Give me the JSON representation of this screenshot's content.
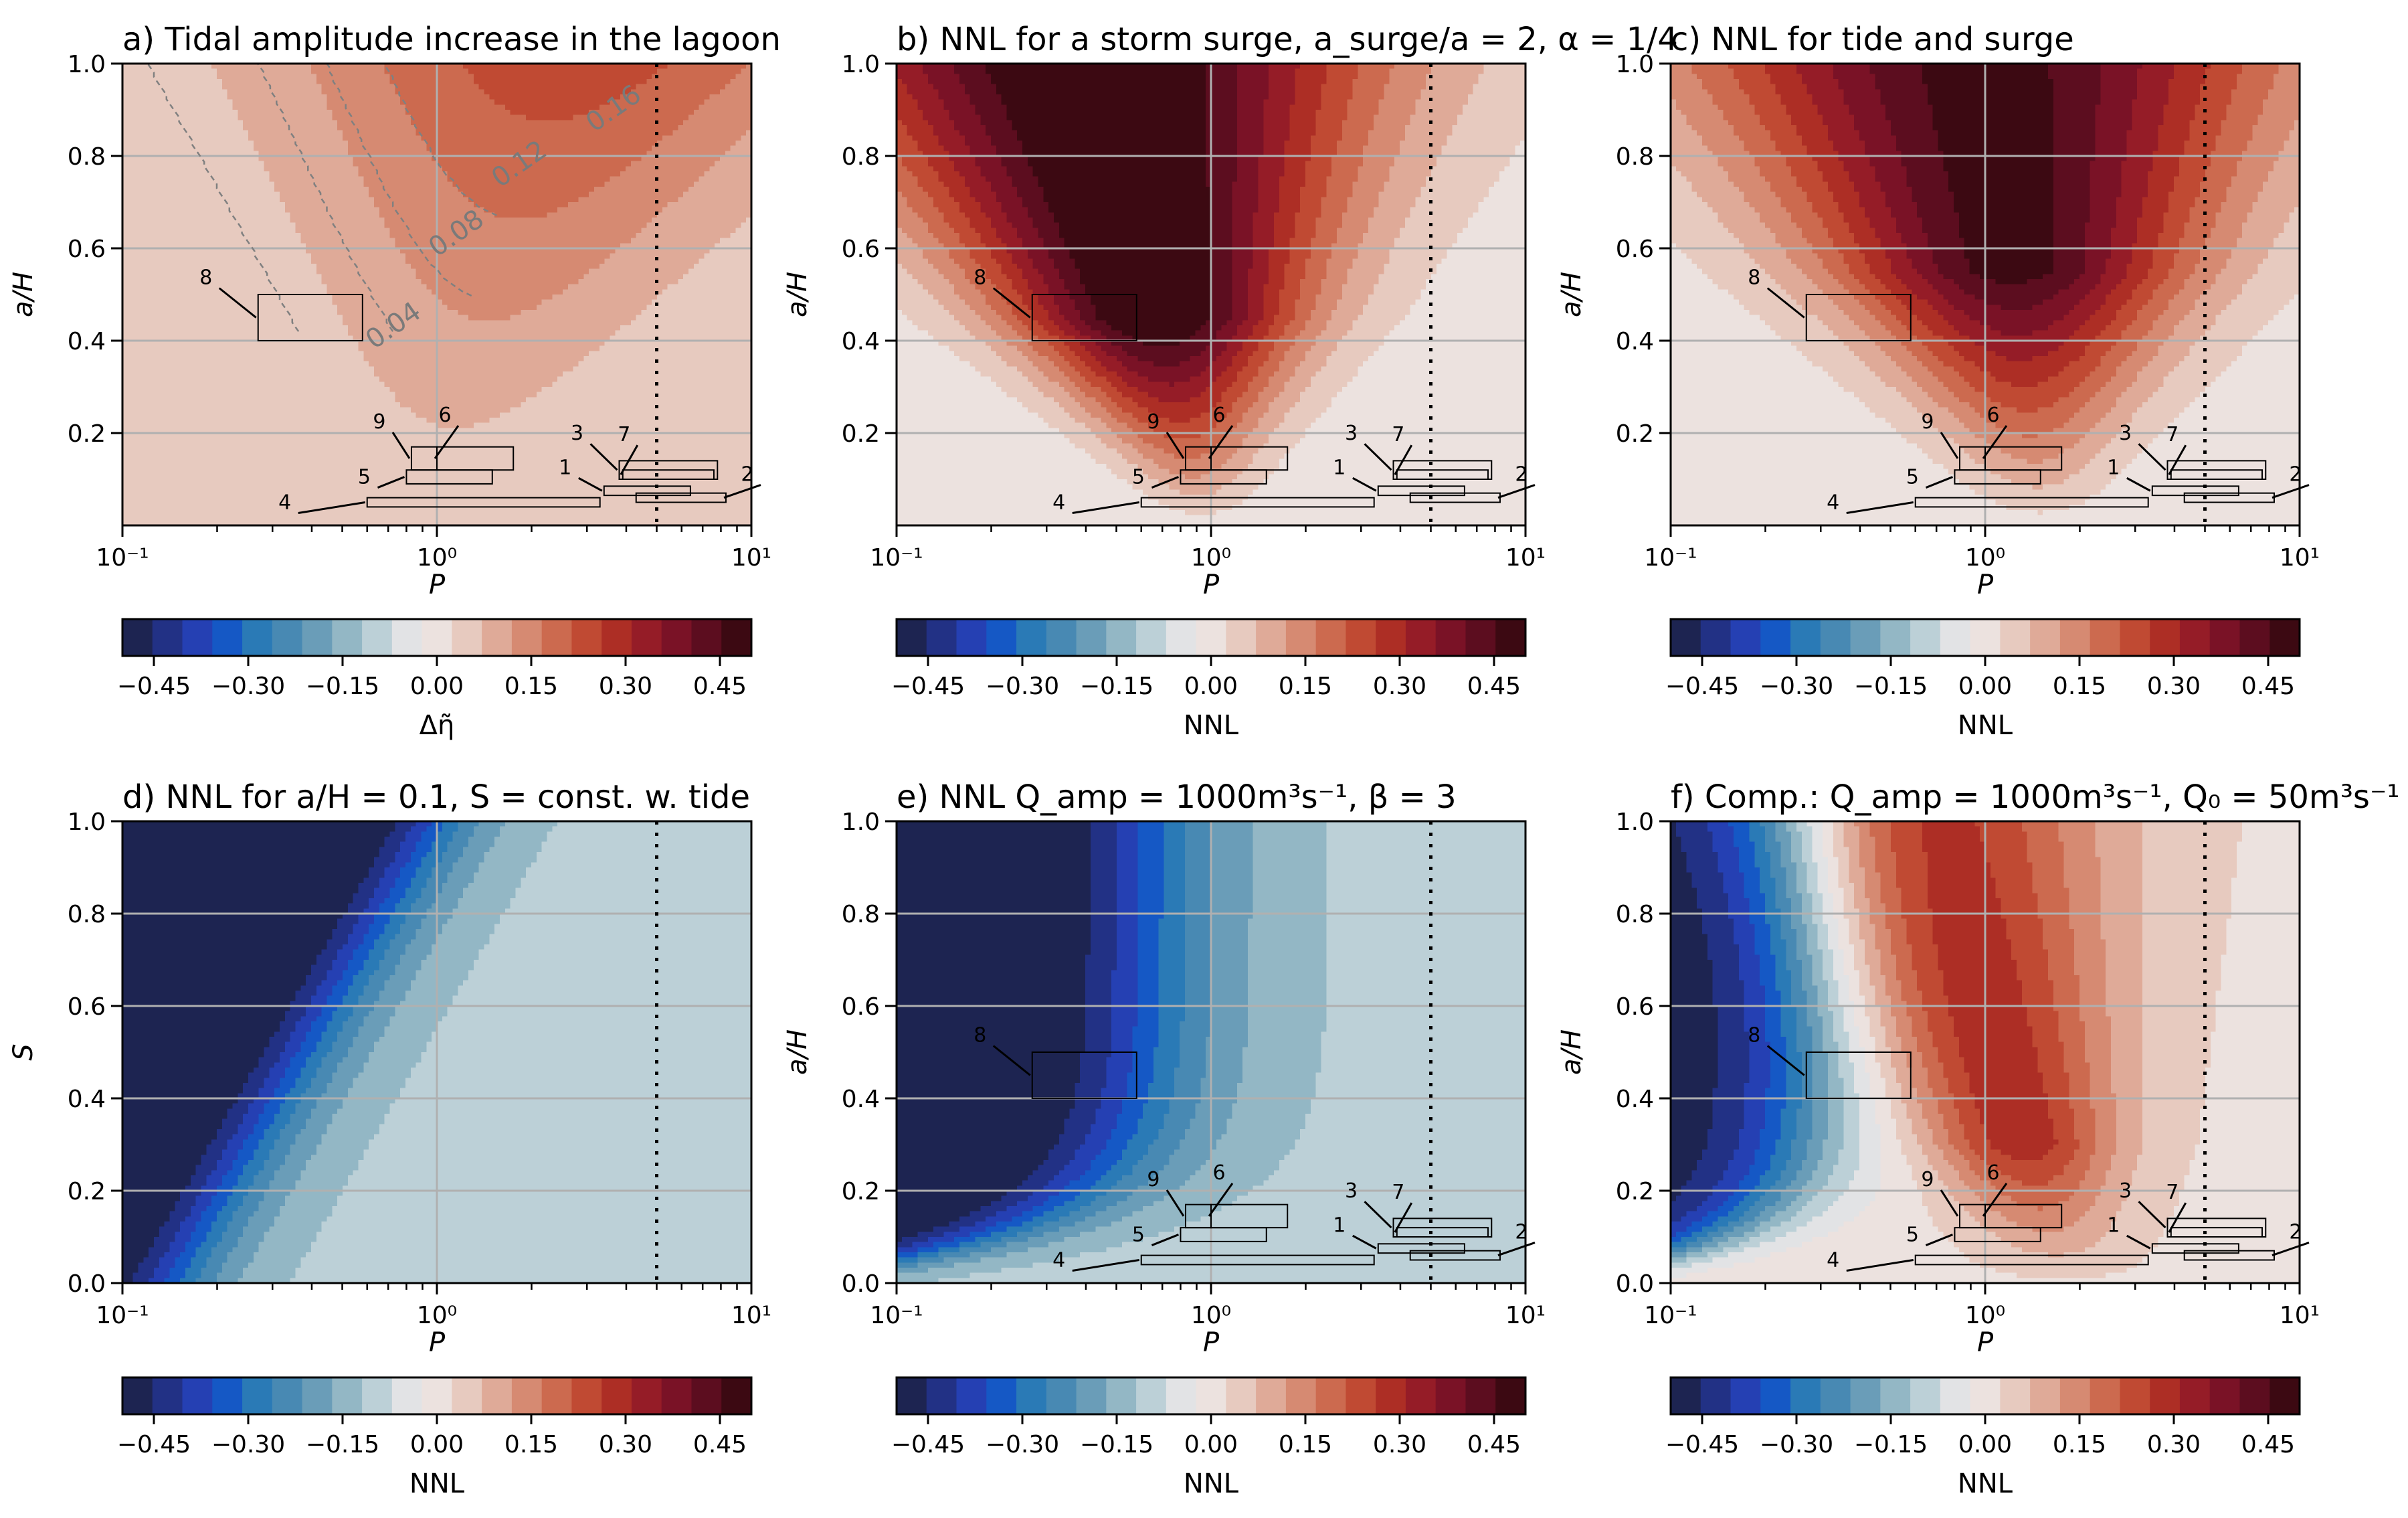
{
  "chart_data": [
    {
      "type": "contour",
      "title": "a) Tidal amplitude increase in the lagoon",
      "xlabel": "P",
      "ylabel": "a/H",
      "xscale": "log",
      "xlim": [
        0.1,
        10
      ],
      "ylim": [
        0.0,
        1.0
      ],
      "colorbar_label": "Δη̃",
      "field": "tide",
      "contour_line_labels": [
        "0.16",
        "0.12",
        "0.08",
        "0.04"
      ]
    },
    {
      "type": "contour",
      "title": "b) NNL for a storm surge, a_surge/a = 2, α = 1/4",
      "xlabel": "P",
      "ylabel": "a/H",
      "xscale": "log",
      "xlim": [
        0.1,
        10
      ],
      "ylim": [
        0.0,
        1.0
      ],
      "colorbar_label": "NNL",
      "field": "surge"
    },
    {
      "type": "contour",
      "title": "c) NNL for tide and surge",
      "xlabel": "P",
      "ylabel": "a/H",
      "xscale": "log",
      "xlim": [
        0.1,
        10
      ],
      "ylim": [
        0.0,
        1.0
      ],
      "colorbar_label": "NNL",
      "field": "tidesurge"
    },
    {
      "type": "contour",
      "title": "d) NNL for a/H = 0.1, S = const. w. tide",
      "xlabel": "P",
      "ylabel": "S",
      "xscale": "log",
      "xlim": [
        0.1,
        10
      ],
      "ylim": [
        0.0,
        1.0
      ],
      "colorbar_label": "NNL",
      "field": "sconst"
    },
    {
      "type": "contour",
      "title": "e) NNL Q_amp = 1000m³s⁻¹, β = 3",
      "xlabel": "P",
      "ylabel": "a/H",
      "xscale": "log",
      "xlim": [
        0.1,
        10
      ],
      "ylim": [
        0.0,
        1.0
      ],
      "colorbar_label": "NNL",
      "field": "river"
    },
    {
      "type": "contour",
      "title": "f) Comp.: Q_amp = 1000m³s⁻¹, Q₀ = 50m³s⁻¹",
      "xlabel": "P",
      "ylabel": "a/H",
      "xscale": "log",
      "xlim": [
        0.1,
        10
      ],
      "ylim": [
        0.0,
        1.0
      ],
      "colorbar_label": "NNL",
      "field": "comp"
    }
  ],
  "x_tick_labels": [
    "10⁻¹",
    "10⁰",
    "10¹"
  ],
  "y_tick_labels_top": [
    "0.2",
    "0.4",
    "0.6",
    "0.8",
    "1.0"
  ],
  "y_tick_labels_bottom": [
    "0.0",
    "0.2",
    "0.4",
    "0.6",
    "0.8",
    "1.0"
  ],
  "colorbar_levels": [
    -0.5,
    -0.45,
    -0.4,
    -0.35,
    -0.3,
    -0.25,
    -0.2,
    -0.15,
    -0.1,
    -0.05,
    0,
    0.05,
    0.1,
    0.15,
    0.2,
    0.25,
    0.3,
    0.35,
    0.4,
    0.45,
    0.5
  ],
  "colorbar_tick_labels": [
    "−0.45",
    "−0.30",
    "−0.15",
    "0.00",
    "0.15",
    "0.30",
    "0.45"
  ],
  "colorbar_tick_values": [
    -0.45,
    -0.3,
    -0.15,
    0,
    0.15,
    0.3,
    0.45
  ],
  "colorbar_colors": [
    "#1d2451",
    "#223185",
    "#2540b3",
    "#1558c5",
    "#2a7ab6",
    "#4889b3",
    "#6a9db8",
    "#93b7c5",
    "#bcd0d7",
    "#e2e3e5",
    "#ece2df",
    "#e7cabf",
    "#dfaa98",
    "#d68a72",
    "#cc6a4f",
    "#c04a33",
    "#ad2e25",
    "#951c27",
    "#7a1226",
    "#5c0d1f",
    "#3c0912"
  ],
  "dotted_line_x": 5,
  "lagoons": [
    {
      "id": "8",
      "p0": 0.27,
      "p1": 0.58,
      "y0": 0.4,
      "y1": 0.5
    },
    {
      "id": "9",
      "p0": 0.83,
      "p1": 1.0,
      "y0": 0.12,
      "y1": 0.17
    },
    {
      "id": "6",
      "p0": 1.0,
      "p1": 1.75,
      "y0": 0.12,
      "y1": 0.17
    },
    {
      "id": "5",
      "p0": 0.8,
      "p1": 1.5,
      "y0": 0.09,
      "y1": 0.12
    },
    {
      "id": "4",
      "p0": 0.6,
      "p1": 3.3,
      "y0": 0.04,
      "y1": 0.06
    },
    {
      "id": "3",
      "p0": 3.8,
      "p1": 7.8,
      "y0": 0.1,
      "y1": 0.14
    },
    {
      "id": "1",
      "p0": 3.4,
      "p1": 6.4,
      "y0": 0.065,
      "y1": 0.085
    },
    {
      "id": "7",
      "p0": 3.9,
      "p1": 7.6,
      "y0": 0.1,
      "y1": 0.12
    },
    {
      "id": "2",
      "p0": 4.3,
      "p1": 8.3,
      "y0": 0.05,
      "y1": 0.07
    }
  ]
}
